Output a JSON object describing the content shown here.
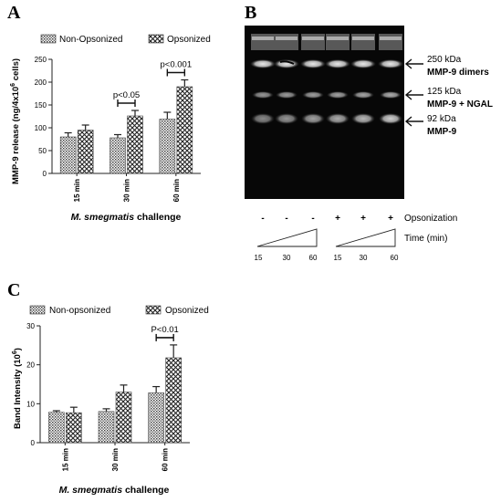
{
  "panels": {
    "a": "A",
    "b": "B",
    "c": "C"
  },
  "chart_data": [
    {
      "type": "bar",
      "panel": "A",
      "categories": [
        "15 min",
        "30 min",
        "60 min"
      ],
      "series": [
        {
          "name": "Non-Opsonized",
          "values": [
            80,
            78,
            119
          ],
          "errors": [
            9,
            7,
            15
          ]
        },
        {
          "name": "Opsonized",
          "values": [
            95,
            126,
            190
          ],
          "errors": [
            11,
            12,
            15
          ]
        }
      ],
      "ylabel_prefix": "MMP-9 release (ng/4x10",
      "ylabel_sup": "6",
      "ylabel_suffix": " cells)",
      "xlabel_italic": "M. smegmatis",
      "xlabel_rest": " challenge",
      "ylim": [
        0,
        250
      ],
      "yticks": [
        "0",
        "50",
        "100",
        "150",
        "200",
        "250"
      ],
      "annotations": [
        {
          "text": "p<0.05",
          "category": "30 min"
        },
        {
          "text": "p<0.001",
          "category": "60 min"
        }
      ]
    },
    {
      "type": "bar",
      "panel": "C",
      "categories": [
        "15 min",
        "30 min",
        "60 min"
      ],
      "series": [
        {
          "name": "Non-opsonized",
          "values": [
            7.8,
            8.0,
            12.8
          ],
          "errors": [
            0.4,
            0.7,
            1.6
          ]
        },
        {
          "name": "Opsonized",
          "values": [
            7.7,
            13.0,
            21.8
          ],
          "errors": [
            1.4,
            1.8,
            3.3
          ]
        }
      ],
      "ylabel_prefix": "Band Intensity (10",
      "ylabel_sup": "6",
      "ylabel_suffix": ")",
      "xlabel_italic": "M. smegmatis",
      "xlabel_rest": " challenge",
      "ylim": [
        0,
        30
      ],
      "yticks": [
        "0",
        "10",
        "20",
        "30"
      ],
      "annotations": [
        {
          "text": "P<0.01",
          "category": "60 min"
        }
      ]
    }
  ],
  "gel": {
    "bands": [
      {
        "kda": "250 kDa",
        "name": "MMP-9 dimers"
      },
      {
        "kda": "125 kDa",
        "name": "MMP-9 + NGAL"
      },
      {
        "kda": "92 kDa",
        "name": "MMP-9"
      }
    ],
    "opsonization_marks": [
      "-",
      "-",
      "-",
      "+",
      "+",
      "+"
    ],
    "opsonization_label": "Opsonization",
    "time_label": "Time (min)",
    "time_values": [
      "15",
      "30",
      "60",
      "15",
      "30",
      "60"
    ]
  }
}
